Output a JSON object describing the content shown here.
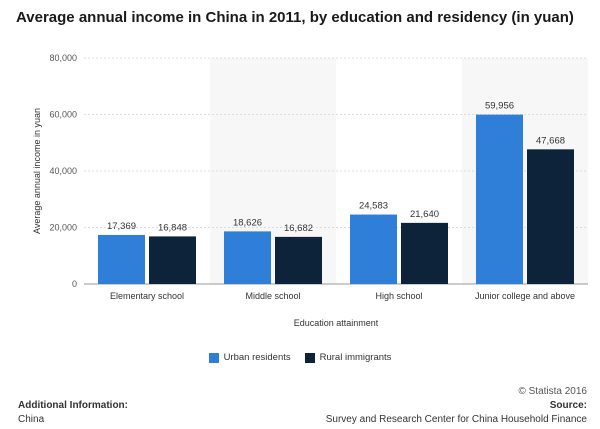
{
  "header": {
    "title": "Average annual income in China in 2011, by education and residency (in yuan)"
  },
  "chart_data": {
    "type": "bar",
    "title": "Average annual income in China in 2011, by education and residency (in yuan)",
    "xlabel": "Education attainment",
    "ylabel": "Average annual income in yuan",
    "ylim": [
      0,
      80000
    ],
    "yticks": [
      0,
      20000,
      40000,
      60000,
      80000
    ],
    "ytick_labels": [
      "0",
      "20,000",
      "40,000",
      "60,000",
      "80,000"
    ],
    "grid": true,
    "legend_position": "bottom-center",
    "categories": [
      "Elementary school",
      "Middle school",
      "High school",
      "Junior college and above"
    ],
    "series": [
      {
        "name": "Urban residents",
        "color": "#2f7ed8",
        "values": [
          17369,
          18626,
          24583,
          59956
        ],
        "labels": [
          "17,369",
          "18,626",
          "24,583",
          "59,956"
        ]
      },
      {
        "name": "Rural immigrants",
        "color": "#0d233a",
        "values": [
          16848,
          16682,
          21640,
          47668
        ],
        "labels": [
          "16,848",
          "16,682",
          "21,640",
          "47,668"
        ]
      }
    ]
  },
  "footer": {
    "additional_info_label": "Additional Information:",
    "additional_info_value": "China",
    "copyright": "© Statista 2016",
    "source_label": "Source:",
    "source_value": "Survey and Research Center for China Household Finance"
  }
}
